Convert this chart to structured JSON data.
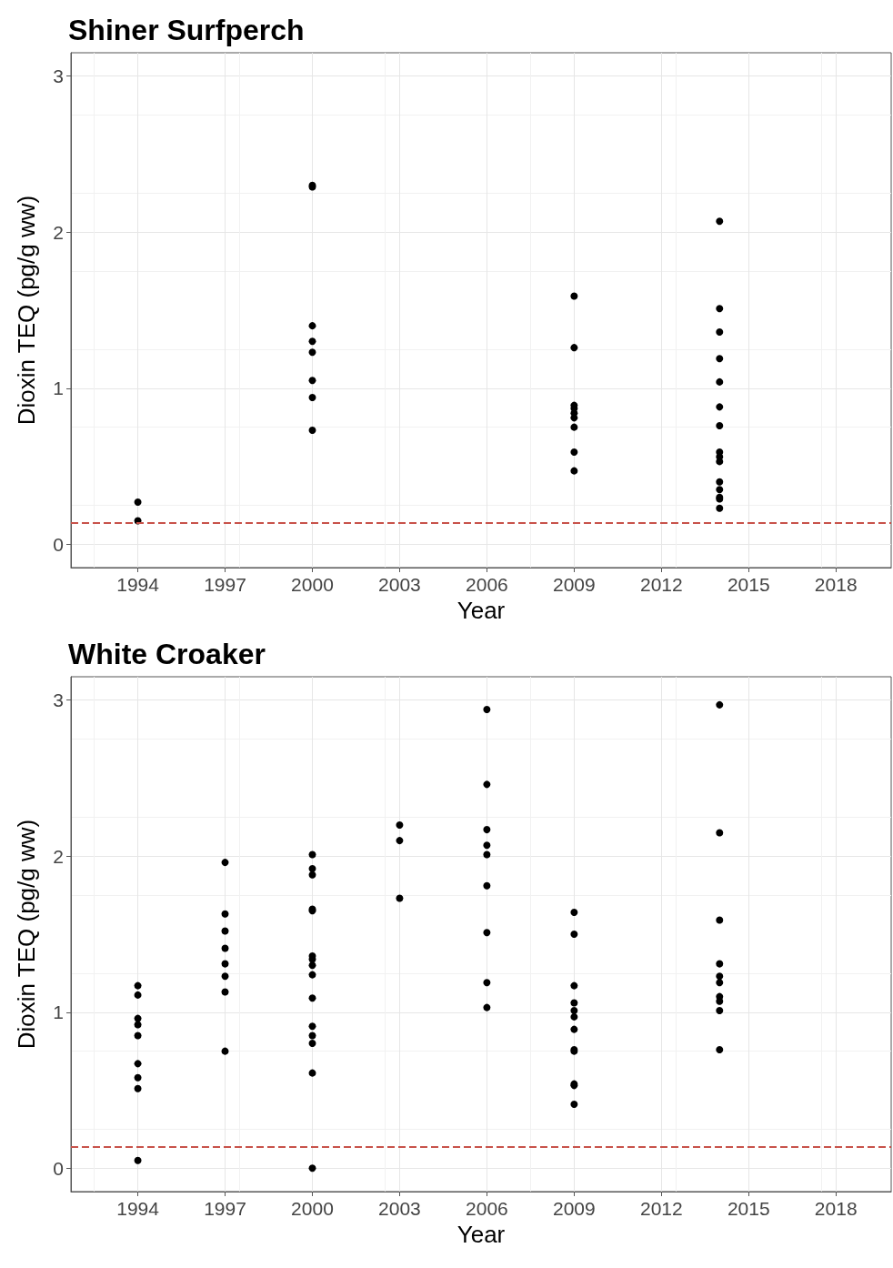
{
  "chart_data": [
    {
      "type": "scatter",
      "title": "Shiner Surfperch",
      "xlabel": "Year",
      "ylabel": "Dioxin TEQ (pg/g ww)",
      "xlim": [
        1991.7,
        2019.9
      ],
      "xticks": [
        1994,
        1997,
        2000,
        2003,
        2006,
        2009,
        2012,
        2015,
        2018
      ],
      "ylim": [
        -0.15,
        3.15
      ],
      "yticks": [
        0,
        1,
        2,
        3
      ],
      "grid": true,
      "marker": "circle",
      "series": [
        {
          "color": "#000000",
          "x": [
            1994,
            1994,
            2000,
            2000,
            2000,
            2000,
            2000,
            2000,
            2000,
            2000,
            2009,
            2009,
            2009,
            2009,
            2009,
            2009,
            2009,
            2009,
            2009,
            2014,
            2014,
            2014,
            2014,
            2014,
            2014,
            2014,
            2014,
            2014,
            2014,
            2014,
            2014,
            2014,
            2014,
            2014
          ],
          "values": [
            0.27,
            0.15,
            2.3,
            2.29,
            1.4,
            1.3,
            1.23,
            1.05,
            0.94,
            0.73,
            1.59,
            1.26,
            0.89,
            0.87,
            0.84,
            0.81,
            0.75,
            0.59,
            0.47,
            2.07,
            1.51,
            1.36,
            1.19,
            1.04,
            0.88,
            0.76,
            0.59,
            0.56,
            0.53,
            0.4,
            0.35,
            0.3,
            0.29,
            0.23
          ]
        }
      ],
      "ref_lines": [
        {
          "axis": "y",
          "value": 0.14,
          "color": "#c8524a",
          "line_style": "dashed"
        }
      ]
    },
    {
      "type": "scatter",
      "title": "White Croaker",
      "xlabel": "Year",
      "ylabel": "Dioxin TEQ (pg/g ww)",
      "xlim": [
        1991.7,
        2019.9
      ],
      "xticks": [
        1994,
        1997,
        2000,
        2003,
        2006,
        2009,
        2012,
        2015,
        2018
      ],
      "ylim": [
        -0.15,
        3.15
      ],
      "yticks": [
        0,
        1,
        2,
        3
      ],
      "grid": true,
      "marker": "circle",
      "series": [
        {
          "color": "#000000",
          "x": [
            1994,
            1994,
            1994,
            1994,
            1994,
            1994,
            1994,
            1994,
            1994,
            1997,
            1997,
            1997,
            1997,
            1997,
            1997,
            1997,
            1997,
            2000,
            2000,
            2000,
            2000,
            2000,
            2000,
            2000,
            2000,
            2000,
            2000,
            2000,
            2000,
            2000,
            2000,
            2000,
            2003,
            2003,
            2003,
            2006,
            2006,
            2006,
            2006,
            2006,
            2006,
            2006,
            2006,
            2006,
            2009,
            2009,
            2009,
            2009,
            2009,
            2009,
            2009,
            2009,
            2009,
            2009,
            2009,
            2009,
            2014,
            2014,
            2014,
            2014,
            2014,
            2014,
            2014,
            2014,
            2014,
            2014
          ],
          "values": [
            1.17,
            1.11,
            0.96,
            0.92,
            0.85,
            0.67,
            0.58,
            0.51,
            0.05,
            1.96,
            1.63,
            1.52,
            1.41,
            1.31,
            1.23,
            1.13,
            0.75,
            2.01,
            1.92,
            1.88,
            1.66,
            1.65,
            1.36,
            1.34,
            1.3,
            1.24,
            1.09,
            0.91,
            0.85,
            0.8,
            0.61,
            0.0,
            2.2,
            2.1,
            1.73,
            2.94,
            2.46,
            2.17,
            2.07,
            2.01,
            1.81,
            1.51,
            1.19,
            1.03,
            1.64,
            1.5,
            1.17,
            1.06,
            1.01,
            0.97,
            0.89,
            0.76,
            0.75,
            0.54,
            0.53,
            0.41,
            2.97,
            2.15,
            1.59,
            1.31,
            1.23,
            1.19,
            1.1,
            1.07,
            1.01,
            0.76
          ]
        }
      ],
      "ref_lines": [
        {
          "axis": "y",
          "value": 0.14,
          "color": "#c8524a",
          "line_style": "dashed"
        }
      ]
    }
  ]
}
